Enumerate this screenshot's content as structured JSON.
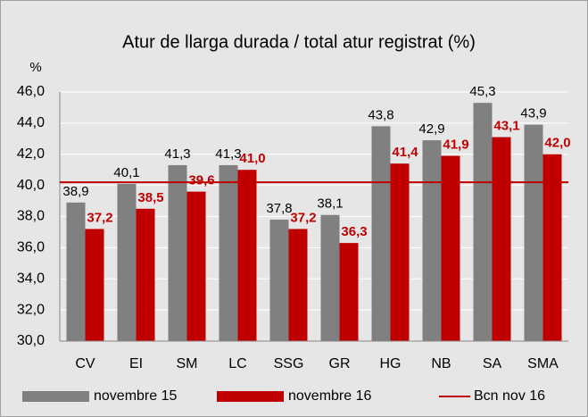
{
  "chart_data": {
    "type": "bar",
    "title": "Atur de llarga durada / total atur registrat (%)",
    "y_axis_label": "%",
    "categories": [
      "CV",
      "EI",
      "SM",
      "LC",
      "SSG",
      "GR",
      "HG",
      "NB",
      "SA",
      "SMA"
    ],
    "series": [
      {
        "name": "novembre 15",
        "color": "#808080",
        "values": [
          38.9,
          40.1,
          41.3,
          41.3,
          37.8,
          38.1,
          43.8,
          42.9,
          45.3,
          43.9
        ],
        "value_labels": [
          "38,9",
          "40,1",
          "41,3",
          "41,3",
          "37,8",
          "38,1",
          "43,8",
          "42,9",
          "45,3",
          "43,9"
        ]
      },
      {
        "name": "novembre 16",
        "color": "#c00000",
        "values": [
          37.2,
          38.5,
          39.6,
          41.0,
          37.2,
          36.3,
          41.4,
          41.9,
          43.1,
          42.0
        ],
        "value_labels": [
          "37,2",
          "38,5",
          "39,6",
          "41,0",
          "37,2",
          "36,3",
          "41,4",
          "41,9",
          "43,1",
          "42,0"
        ]
      }
    ],
    "reference_line": {
      "name": "Bcn nov 16",
      "value": 40.2,
      "color": "#c00000"
    },
    "ylim": [
      30,
      46
    ],
    "yticks": [
      {
        "value": 30,
        "label": "30,0"
      },
      {
        "value": 32,
        "label": "32,0"
      },
      {
        "value": 34,
        "label": "34,0"
      },
      {
        "value": 36,
        "label": "36,0"
      },
      {
        "value": 38,
        "label": "38,0"
      },
      {
        "value": 40,
        "label": "40,0"
      },
      {
        "value": 42,
        "label": "42,0"
      },
      {
        "value": 44,
        "label": "44,0"
      },
      {
        "value": 46,
        "label": "46,0"
      }
    ],
    "grid": true
  }
}
